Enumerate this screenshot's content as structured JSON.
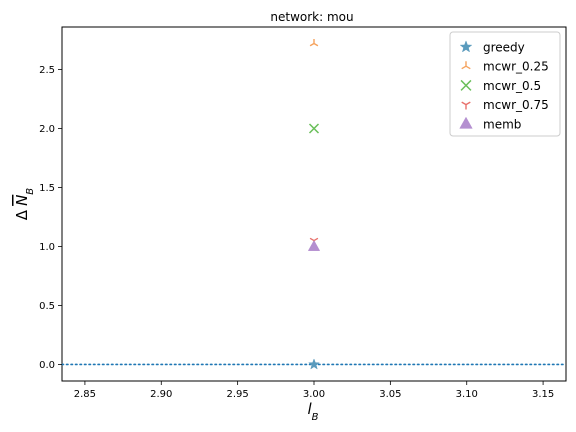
{
  "chart_data": {
    "type": "scatter",
    "title": "network: mou",
    "xlabel": "l",
    "xlabel_sub": "B",
    "ylabel_prefix": "Δ",
    "ylabel": "N",
    "ylabel_sub": "B",
    "xlim": [
      2.835,
      3.165
    ],
    "ylim": [
      -0.14,
      2.86
    ],
    "xticks": [
      2.85,
      2.9,
      2.95,
      3.0,
      3.05,
      3.1,
      3.15
    ],
    "xtick_labels": [
      "2.85",
      "2.90",
      "2.95",
      "3.00",
      "3.05",
      "3.10",
      "3.15"
    ],
    "yticks": [
      0.0,
      0.5,
      1.0,
      1.5,
      2.0,
      2.5
    ],
    "ytick_labels": [
      "0.0",
      "0.5",
      "1.0",
      "1.5",
      "2.0",
      "2.5"
    ],
    "reference_line": {
      "y": 0.0,
      "style": "dotted",
      "color": "#1f77b4"
    },
    "legend_position": "top-right",
    "series": [
      {
        "name": "greedy",
        "marker": "star",
        "color": "#5a9bbd",
        "x": [
          3.0
        ],
        "y": [
          0.0
        ]
      },
      {
        "name": "mcwr_0.25",
        "marker": "tri-up",
        "color": "#f5a25d",
        "x": [
          3.0
        ],
        "y": [
          2.72
        ]
      },
      {
        "name": "mcwr_0.5",
        "marker": "x",
        "color": "#6abf5a",
        "x": [
          3.0
        ],
        "y": [
          2.0
        ]
      },
      {
        "name": "mcwr_0.75",
        "marker": "tri-down",
        "color": "#e8706b",
        "x": [
          3.0
        ],
        "y": [
          1.05
        ]
      },
      {
        "name": "memb",
        "marker": "triangle",
        "color": "#b48fd0",
        "x": [
          3.0
        ],
        "y": [
          1.0
        ]
      }
    ]
  }
}
